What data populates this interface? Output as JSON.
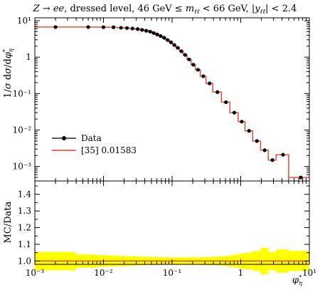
{
  "chart_data": [
    {
      "type": "line",
      "title": "Z → ee, dressed level, 46 GeV ≤ m_ℓℓ < 66 GeV, |y_ℓℓ| < 2.4",
      "xlabel": "φ*_η",
      "ylabel": "1/σ dσ/dφ*_η",
      "xscale": "log",
      "yscale": "log",
      "xlim": [
        0.001,
        10
      ],
      "ylim": [
        0.0004,
        12
      ],
      "xticklabels": [
        "10⁻³",
        "10⁻²",
        "10⁻¹",
        "1",
        "10¹"
      ],
      "yticklabels": [
        "10⁻³",
        "10⁻²",
        "10⁻¹",
        "1",
        "10¹"
      ],
      "legend_position": "lower-left",
      "bin_edges": [
        0.001,
        0.004,
        0.008,
        0.012,
        0.016,
        0.02,
        0.024,
        0.029,
        0.034,
        0.039,
        0.045,
        0.051,
        0.057,
        0.064,
        0.072,
        0.081,
        0.091,
        0.102,
        0.114,
        0.128,
        0.145,
        0.165,
        0.189,
        0.219,
        0.258,
        0.312,
        0.391,
        0.524,
        0.695,
        0.918,
        1.153,
        1.496,
        1.947,
        2.522,
        3.277,
        5.0,
        10.0
      ],
      "series": [
        {
          "name": "Data",
          "style": "markers",
          "color": "#000000",
          "x": [
            0.002,
            0.006,
            0.01,
            0.014,
            0.018,
            0.022,
            0.0265,
            0.0315,
            0.0365,
            0.042,
            0.048,
            0.054,
            0.0605,
            0.068,
            0.0765,
            0.086,
            0.0965,
            0.108,
            0.121,
            0.1365,
            0.155,
            0.177,
            0.204,
            0.2385,
            0.285,
            0.3515,
            0.4575,
            0.6095,
            0.8065,
            1.0355,
            1.3245,
            1.7215,
            2.2345,
            2.8995,
            4.1385,
            7.5
          ],
          "values": [
            6.7,
            6.7,
            6.65,
            6.6,
            6.4,
            6.3,
            6.1,
            5.9,
            5.6,
            5.3,
            5.0,
            4.6,
            4.2,
            3.8,
            3.4,
            2.95,
            2.55,
            2.15,
            1.8,
            1.45,
            1.15,
            0.87,
            0.62,
            0.45,
            0.3,
            0.19,
            0.11,
            0.058,
            0.03,
            0.017,
            0.0095,
            0.005,
            0.0028,
            0.0015,
            0.0021,
            0.0005
          ]
        },
        {
          "name": "[35] 0.01583",
          "style": "step",
          "color": "#e8402a",
          "values": [
            6.7,
            6.7,
            6.65,
            6.6,
            6.4,
            6.3,
            6.1,
            5.9,
            5.6,
            5.3,
            5.0,
            4.6,
            4.2,
            3.8,
            3.4,
            2.95,
            2.55,
            2.15,
            1.8,
            1.45,
            1.15,
            0.87,
            0.62,
            0.45,
            0.3,
            0.19,
            0.11,
            0.058,
            0.03,
            0.017,
            0.0095,
            0.005,
            0.0028,
            0.0015,
            0.0021,
            0.0005
          ]
        }
      ]
    },
    {
      "type": "line",
      "ylabel": "MC/Data",
      "xlabel": "φ*_η",
      "xscale": "log",
      "xlim": [
        0.001,
        10
      ],
      "ylim": [
        0.98,
        1.48
      ],
      "yticklabels": [
        "1.0",
        "1.1",
        "1.2",
        "1.3",
        "1.4"
      ],
      "band_color": "#ffff00",
      "series": [
        {
          "name": "[35] 0.01583",
          "color": "#e8402a",
          "values": [
            1,
            1,
            1,
            1,
            1,
            1,
            1,
            1,
            1,
            1,
            1,
            1,
            1,
            1,
            1,
            1,
            1,
            1,
            1,
            1,
            1,
            1,
            1,
            1,
            1,
            1,
            1,
            1,
            1,
            1,
            1,
            1,
            1,
            1,
            1,
            1
          ]
        }
      ],
      "uncertainty_band": {
        "up": [
          1.055,
          1.04,
          1.035,
          1.033,
          1.03,
          1.03,
          1.028,
          1.027,
          1.026,
          1.025,
          1.025,
          1.024,
          1.023,
          1.023,
          1.022,
          1.022,
          1.022,
          1.022,
          1.022,
          1.022,
          1.022,
          1.022,
          1.022,
          1.022,
          1.023,
          1.024,
          1.026,
          1.03,
          1.037,
          1.045,
          1.05,
          1.06,
          1.08,
          1.055,
          1.07,
          1.06
        ],
        "down": [
          0.945,
          0.96,
          0.965,
          0.967,
          0.97,
          0.97,
          0.972,
          0.973,
          0.974,
          0.975,
          0.975,
          0.976,
          0.977,
          0.977,
          0.978,
          0.978,
          0.978,
          0.978,
          0.978,
          0.978,
          0.978,
          0.978,
          0.978,
          0.978,
          0.977,
          0.976,
          0.974,
          0.97,
          0.963,
          0.955,
          0.95,
          0.94,
          0.92,
          0.945,
          0.93,
          0.94
        ]
      }
    }
  ]
}
